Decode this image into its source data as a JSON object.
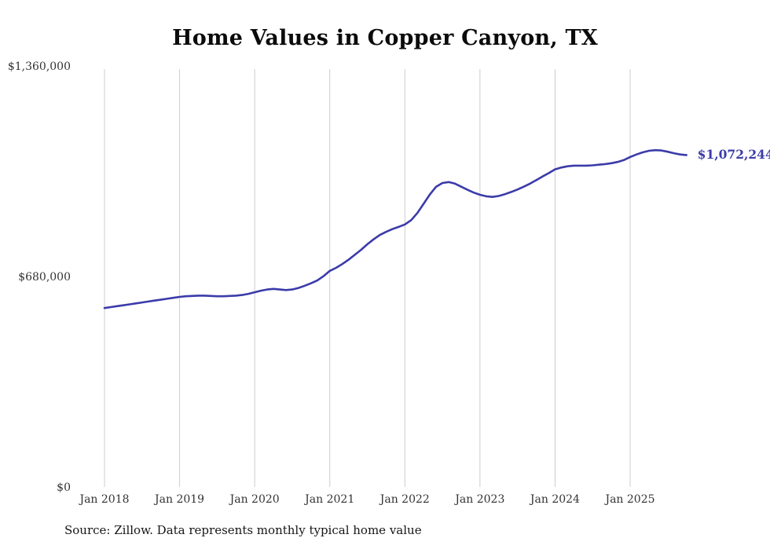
{
  "page": {
    "source_note": "Source: Zillow. Data represents monthly typical home value"
  },
  "chart_data": {
    "type": "line",
    "title": "Home Values in Copper Canyon, TX",
    "series_name": "Typical home value",
    "xlabel": "",
    "ylabel": "",
    "ylim": [
      0,
      1360000
    ],
    "grid": "vertical-only",
    "legend": "none",
    "line_color": "#3b3baa",
    "grid_color": "#cccccc",
    "end_label": "$1,072,244",
    "y_ticks": [
      0,
      680000,
      1360000
    ],
    "y_tick_labels": [
      "$0",
      "$680,000",
      "$1,360,000"
    ],
    "x_tick_labels": [
      "Jan 2018",
      "Jan 2019",
      "Jan 2020",
      "Jan 2021",
      "Jan 2022",
      "Jan 2023",
      "Jan 2024",
      "Jan 2025"
    ],
    "months": [
      "Jan 2018",
      "Feb 2018",
      "Mar 2018",
      "Apr 2018",
      "May 2018",
      "Jun 2018",
      "Jul 2018",
      "Aug 2018",
      "Sep 2018",
      "Oct 2018",
      "Nov 2018",
      "Dec 2018",
      "Jan 2019",
      "Feb 2019",
      "Mar 2019",
      "Apr 2019",
      "May 2019",
      "Jun 2019",
      "Jul 2019",
      "Aug 2019",
      "Sep 2019",
      "Oct 2019",
      "Nov 2019",
      "Dec 2019",
      "Jan 2020",
      "Feb 2020",
      "Mar 2020",
      "Apr 2020",
      "May 2020",
      "Jun 2020",
      "Jul 2020",
      "Aug 2020",
      "Sep 2020",
      "Oct 2020",
      "Nov 2020",
      "Dec 2020",
      "Jan 2021",
      "Feb 2021",
      "Mar 2021",
      "Apr 2021",
      "May 2021",
      "Jun 2021",
      "Jul 2021",
      "Aug 2021",
      "Sep 2021",
      "Oct 2021",
      "Nov 2021",
      "Dec 2021",
      "Jan 2022",
      "Feb 2022",
      "Mar 2022",
      "Apr 2022",
      "May 2022",
      "Jun 2022",
      "Jul 2022",
      "Aug 2022",
      "Sep 2022",
      "Oct 2022",
      "Nov 2022",
      "Dec 2022",
      "Jan 2023",
      "Feb 2023",
      "Mar 2023",
      "Apr 2023",
      "May 2023",
      "Jun 2023",
      "Jul 2023",
      "Aug 2023",
      "Sep 2023",
      "Oct 2023",
      "Nov 2023",
      "Dec 2023",
      "Jan 2024",
      "Feb 2024",
      "Mar 2024",
      "Apr 2024",
      "May 2024",
      "Jun 2024",
      "Jul 2024",
      "Aug 2024",
      "Sep 2024",
      "Oct 2024",
      "Nov 2024",
      "Dec 2024",
      "Jan 2025",
      "Feb 2025",
      "Mar 2025",
      "Apr 2025",
      "May 2025",
      "Jun 2025",
      "Jul 2025",
      "Aug 2025",
      "Sep 2025",
      "Oct 2025"
    ],
    "values": [
      578000,
      581000,
      584000,
      587000,
      590000,
      593000,
      596000,
      599000,
      602000,
      605000,
      608000,
      611000,
      614000,
      616000,
      617000,
      618000,
      618000,
      617000,
      616000,
      616000,
      617000,
      618000,
      620000,
      624000,
      629000,
      634000,
      638000,
      640000,
      638000,
      636000,
      638000,
      643000,
      650000,
      658000,
      667000,
      681000,
      698000,
      708000,
      720000,
      734000,
      750000,
      766000,
      784000,
      800000,
      814000,
      824000,
      833000,
      840000,
      848000,
      862000,
      885000,
      915000,
      945000,
      970000,
      982000,
      985000,
      980000,
      970000,
      960000,
      951000,
      944000,
      939000,
      937000,
      940000,
      946000,
      953000,
      961000,
      970000,
      980000,
      991000,
      1003000,
      1014000,
      1026000,
      1032000,
      1036000,
      1038000,
      1038000,
      1038000,
      1039000,
      1041000,
      1043000,
      1046000,
      1050000,
      1056000,
      1066000,
      1074000,
      1081000,
      1086000,
      1088000,
      1087000,
      1083000,
      1078000,
      1074000,
      1072244
    ]
  }
}
